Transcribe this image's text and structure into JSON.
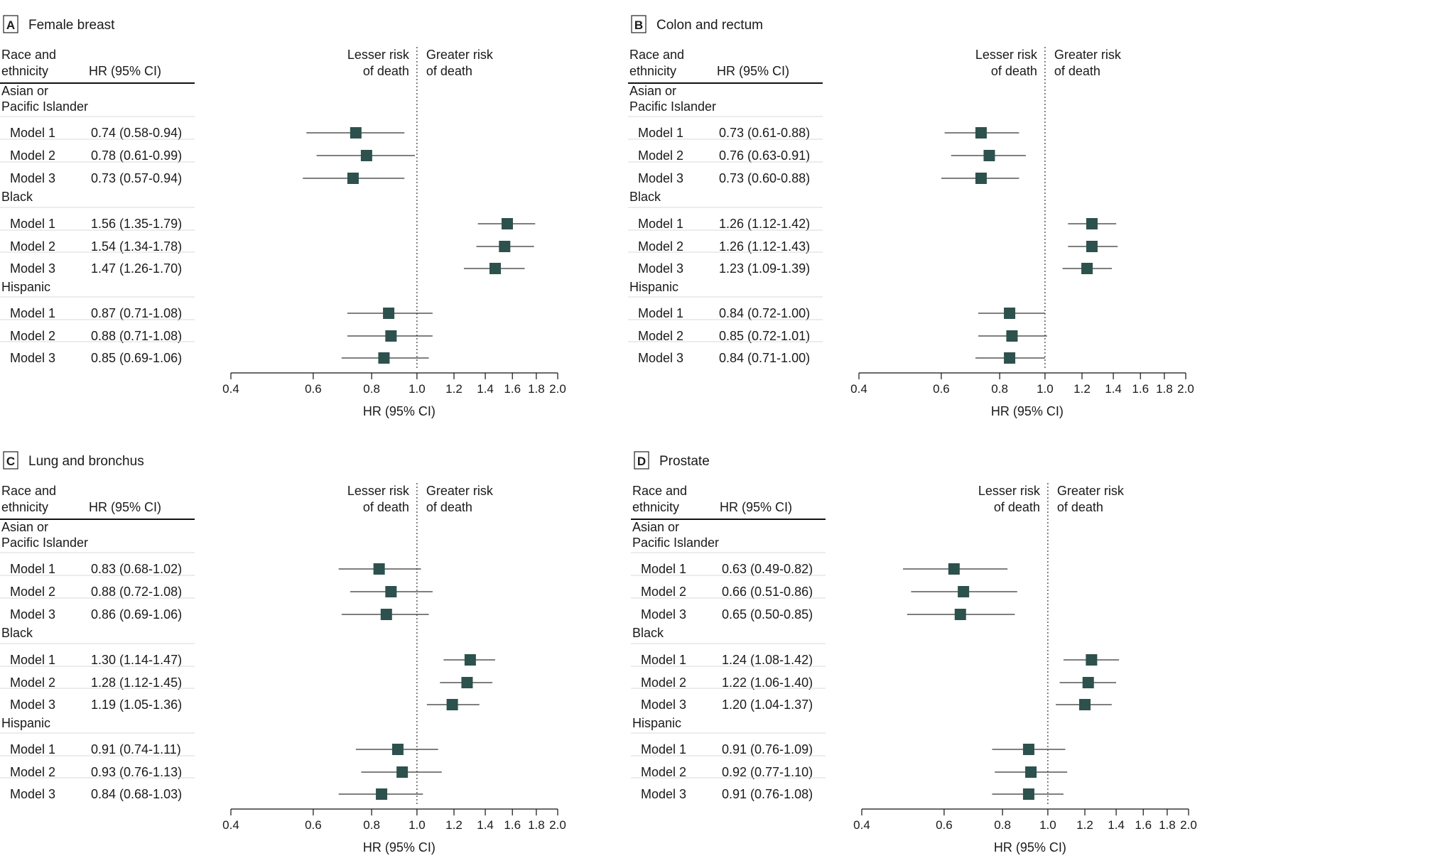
{
  "x_axis_label": "HR (95% CI)",
  "direction_labels": {
    "lesser_line1": "Lesser risk",
    "lesser_line2": "of death",
    "greater_line1": "Greater risk",
    "greater_line2": "of death"
  },
  "column_headers": {
    "race_line1": "Race and",
    "race_line2": "ethnicity",
    "hr": "HR (95% CI)"
  },
  "colors": {
    "marker": "#2d514d",
    "line": "#333333",
    "reference": "#333333"
  },
  "chart_data": [
    {
      "type": "forest",
      "panel_letter": "A",
      "title": "Female breast",
      "x_scale": "log",
      "xlim": [
        0.4,
        2.0
      ],
      "reference": 1.0,
      "ticks": [
        0.4,
        0.6,
        0.8,
        1.0,
        1.2,
        1.4,
        1.6,
        1.8,
        2.0
      ],
      "tick_labels": [
        "0.4",
        "0.6",
        "0.8",
        "1.0",
        "1.2",
        "1.4",
        "1.6",
        "1.8",
        "2.0"
      ],
      "groups": [
        {
          "name_lines": [
            "Asian or",
            "Pacific Islander"
          ],
          "rows": [
            {
              "label": "Model 1",
              "text": "0.74 (0.58-0.94)",
              "hr": 0.74,
              "lo": 0.58,
              "hi": 0.94
            },
            {
              "label": "Model 2",
              "text": "0.78 (0.61-0.99)",
              "hr": 0.78,
              "lo": 0.61,
              "hi": 0.99
            },
            {
              "label": "Model 3",
              "text": "0.73 (0.57-0.94)",
              "hr": 0.73,
              "lo": 0.57,
              "hi": 0.94
            }
          ]
        },
        {
          "name_lines": [
            "Black"
          ],
          "rows": [
            {
              "label": "Model 1",
              "text": "1.56 (1.35-1.79)",
              "hr": 1.56,
              "lo": 1.35,
              "hi": 1.79
            },
            {
              "label": "Model 2",
              "text": "1.54 (1.34-1.78)",
              "hr": 1.54,
              "lo": 1.34,
              "hi": 1.78
            },
            {
              "label": "Model 3",
              "text": "1.47 (1.26-1.70)",
              "hr": 1.47,
              "lo": 1.26,
              "hi": 1.7
            }
          ]
        },
        {
          "name_lines": [
            "Hispanic"
          ],
          "rows": [
            {
              "label": "Model 1",
              "text": "0.87 (0.71-1.08)",
              "hr": 0.87,
              "lo": 0.71,
              "hi": 1.08
            },
            {
              "label": "Model 2",
              "text": "0.88 (0.71-1.08)",
              "hr": 0.88,
              "lo": 0.71,
              "hi": 1.08
            },
            {
              "label": "Model 3",
              "text": "0.85 (0.69-1.06)",
              "hr": 0.85,
              "lo": 0.69,
              "hi": 1.06
            }
          ]
        }
      ]
    },
    {
      "type": "forest",
      "panel_letter": "B",
      "title": "Colon and rectum",
      "x_scale": "log",
      "xlim": [
        0.4,
        2.0
      ],
      "reference": 1.0,
      "ticks": [
        0.4,
        0.6,
        0.8,
        1.0,
        1.2,
        1.4,
        1.6,
        1.8,
        2.0
      ],
      "tick_labels": [
        "0.4",
        "0.6",
        "0.8",
        "1.0",
        "1.2",
        "1.4",
        "1.6",
        "1.8",
        "2.0"
      ],
      "groups": [
        {
          "name_lines": [
            "Asian or",
            "Pacific Islander"
          ],
          "rows": [
            {
              "label": "Model 1",
              "text": "0.73 (0.61-0.88)",
              "hr": 0.73,
              "lo": 0.61,
              "hi": 0.88
            },
            {
              "label": "Model 2",
              "text": "0.76 (0.63-0.91)",
              "hr": 0.76,
              "lo": 0.63,
              "hi": 0.91
            },
            {
              "label": "Model 3",
              "text": "0.73 (0.60-0.88)",
              "hr": 0.73,
              "lo": 0.6,
              "hi": 0.88
            }
          ]
        },
        {
          "name_lines": [
            "Black"
          ],
          "rows": [
            {
              "label": "Model 1",
              "text": "1.26 (1.12-1.42)",
              "hr": 1.26,
              "lo": 1.12,
              "hi": 1.42
            },
            {
              "label": "Model 2",
              "text": "1.26 (1.12-1.43)",
              "hr": 1.26,
              "lo": 1.12,
              "hi": 1.43
            },
            {
              "label": "Model 3",
              "text": "1.23 (1.09-1.39)",
              "hr": 1.23,
              "lo": 1.09,
              "hi": 1.39
            }
          ]
        },
        {
          "name_lines": [
            "Hispanic"
          ],
          "rows": [
            {
              "label": "Model 1",
              "text": "0.84 (0.72-1.00)",
              "hr": 0.84,
              "lo": 0.72,
              "hi": 1.0
            },
            {
              "label": "Model 2",
              "text": "0.85 (0.72-1.01)",
              "hr": 0.85,
              "lo": 0.72,
              "hi": 1.01
            },
            {
              "label": "Model 3",
              "text": "0.84 (0.71-1.00)",
              "hr": 0.84,
              "lo": 0.71,
              "hi": 1.0
            }
          ]
        }
      ]
    },
    {
      "type": "forest",
      "panel_letter": "C",
      "title": "Lung and bronchus",
      "x_scale": "log",
      "xlim": [
        0.4,
        2.0
      ],
      "reference": 1.0,
      "ticks": [
        0.4,
        0.6,
        0.8,
        1.0,
        1.2,
        1.4,
        1.6,
        1.8,
        2.0
      ],
      "tick_labels": [
        "0.4",
        "0.6",
        "0.8",
        "1.0",
        "1.2",
        "1.4",
        "1.6",
        "1.8",
        "2.0"
      ],
      "groups": [
        {
          "name_lines": [
            "Asian or",
            "Pacific Islander"
          ],
          "rows": [
            {
              "label": "Model 1",
              "text": "0.83 (0.68-1.02)",
              "hr": 0.83,
              "lo": 0.68,
              "hi": 1.02
            },
            {
              "label": "Model 2",
              "text": "0.88 (0.72-1.08)",
              "hr": 0.88,
              "lo": 0.72,
              "hi": 1.08
            },
            {
              "label": "Model 3",
              "text": "0.86 (0.69-1.06)",
              "hr": 0.86,
              "lo": 0.69,
              "hi": 1.06
            }
          ]
        },
        {
          "name_lines": [
            "Black"
          ],
          "rows": [
            {
              "label": "Model 1",
              "text": "1.30 (1.14-1.47)",
              "hr": 1.3,
              "lo": 1.14,
              "hi": 1.47
            },
            {
              "label": "Model 2",
              "text": "1.28 (1.12-1.45)",
              "hr": 1.28,
              "lo": 1.12,
              "hi": 1.45
            },
            {
              "label": "Model 3",
              "text": "1.19 (1.05-1.36)",
              "hr": 1.19,
              "lo": 1.05,
              "hi": 1.36
            }
          ]
        },
        {
          "name_lines": [
            "Hispanic"
          ],
          "rows": [
            {
              "label": "Model 1",
              "text": "0.91 (0.74-1.11)",
              "hr": 0.91,
              "lo": 0.74,
              "hi": 1.11
            },
            {
              "label": "Model 2",
              "text": "0.93 (0.76-1.13)",
              "hr": 0.93,
              "lo": 0.76,
              "hi": 1.13
            },
            {
              "label": "Model 3",
              "text": "0.84 (0.68-1.03)",
              "hr": 0.84,
              "lo": 0.68,
              "hi": 1.03
            }
          ]
        }
      ]
    },
    {
      "type": "forest",
      "panel_letter": "D",
      "title": "Prostate",
      "x_scale": "log",
      "xlim": [
        0.4,
        2.0
      ],
      "reference": 1.0,
      "ticks": [
        0.4,
        0.6,
        0.8,
        1.0,
        1.2,
        1.4,
        1.6,
        1.8,
        2.0
      ],
      "tick_labels": [
        "0.4",
        "0.6",
        "0.8",
        "1.0",
        "1.2",
        "1.4",
        "1.6",
        "1.8",
        "2.0"
      ],
      "groups": [
        {
          "name_lines": [
            "Asian or",
            "Pacific Islander"
          ],
          "rows": [
            {
              "label": "Model 1",
              "text": "0.63 (0.49-0.82)",
              "hr": 0.63,
              "lo": 0.49,
              "hi": 0.82
            },
            {
              "label": "Model 2",
              "text": "0.66 (0.51-0.86)",
              "hr": 0.66,
              "lo": 0.51,
              "hi": 0.86
            },
            {
              "label": "Model 3",
              "text": "0.65 (0.50-0.85)",
              "hr": 0.65,
              "lo": 0.5,
              "hi": 0.85
            }
          ]
        },
        {
          "name_lines": [
            "Black"
          ],
          "rows": [
            {
              "label": "Model 1",
              "text": "1.24 (1.08-1.42)",
              "hr": 1.24,
              "lo": 1.08,
              "hi": 1.42
            },
            {
              "label": "Model 2",
              "text": "1.22 (1.06-1.40)",
              "hr": 1.22,
              "lo": 1.06,
              "hi": 1.4
            },
            {
              "label": "Model 3",
              "text": "1.20 (1.04-1.37)",
              "hr": 1.2,
              "lo": 1.04,
              "hi": 1.37
            }
          ]
        },
        {
          "name_lines": [
            "Hispanic"
          ],
          "rows": [
            {
              "label": "Model 1",
              "text": "0.91 (0.76-1.09)",
              "hr": 0.91,
              "lo": 0.76,
              "hi": 1.09
            },
            {
              "label": "Model 2",
              "text": "0.92 (0.77-1.10)",
              "hr": 0.92,
              "lo": 0.77,
              "hi": 1.1
            },
            {
              "label": "Model 3",
              "text": "0.91 (0.76-1.08)",
              "hr": 0.91,
              "lo": 0.76,
              "hi": 1.08
            }
          ]
        }
      ]
    }
  ]
}
